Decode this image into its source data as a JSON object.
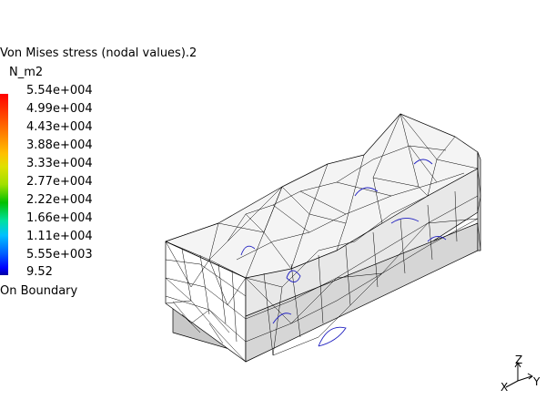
{
  "legend": {
    "title": "Von Mises stress (nodal values).2",
    "unit": "N_m2",
    "ticks": [
      "5.54e+004",
      "4.99e+004",
      "4.43e+004",
      "3.88e+004",
      "3.33e+004",
      "2.77e+004",
      "2.22e+004",
      "1.66e+004",
      "1.11e+004",
      "5.55e+003",
      "9.52"
    ],
    "boundary_label": "On Boundary",
    "colors": {
      "max": "#ff0000",
      "mid": "#00c000",
      "min": "#0000ff"
    }
  },
  "model": {
    "icon": "fe-mesh-part-icon",
    "mesh_color": "#000000",
    "face_colors": [
      "#ffffff",
      "#d0d0d0",
      "#e8e8e8"
    ],
    "stress_contour_color": "#2020c0"
  },
  "triad": {
    "icon": "axis-triad-icon",
    "z_label": "Z",
    "y_label": "Y",
    "x_label": "X"
  }
}
